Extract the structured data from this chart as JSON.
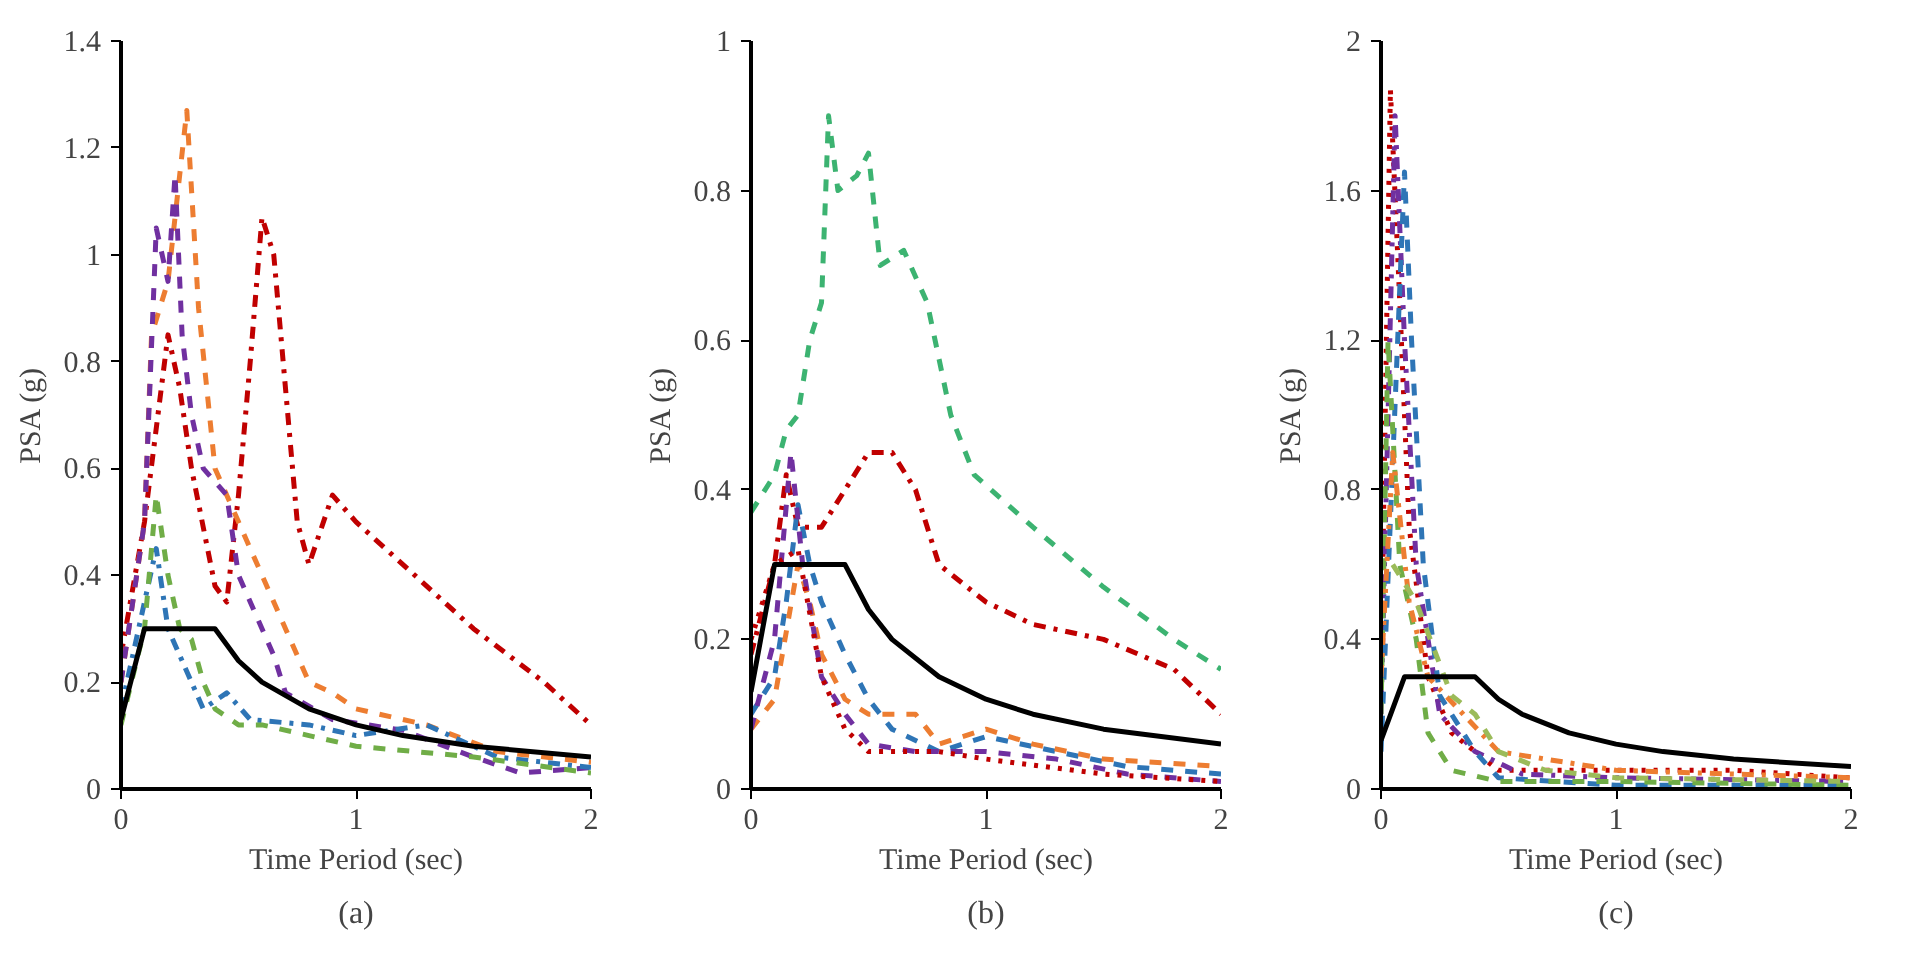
{
  "chart_data": [
    {
      "type": "line",
      "xlabel": "Time Period (sec)",
      "ylabel": "PSA (g)",
      "annotations": [
        "(a)"
      ],
      "xlim": [
        0,
        2
      ],
      "xticks": [
        0,
        1,
        2
      ],
      "ylim": [
        0,
        1.4
      ],
      "yticks": [
        0,
        0.2,
        0.4,
        0.6,
        0.8,
        1,
        1.2,
        1.4
      ],
      "grid": false,
      "series": [
        {
          "color": "#c00000",
          "line_style": "dashdot",
          "x": [
            0,
            0.1,
            0.2,
            0.25,
            0.3,
            0.4,
            0.45,
            0.5,
            0.55,
            0.6,
            0.65,
            0.75,
            0.8,
            0.9,
            1.0,
            1.2,
            1.5,
            1.8,
            2.0
          ],
          "values": [
            0.25,
            0.5,
            0.85,
            0.75,
            0.6,
            0.38,
            0.35,
            0.55,
            0.8,
            1.07,
            1.0,
            0.5,
            0.42,
            0.55,
            0.5,
            0.42,
            0.3,
            0.2,
            0.12
          ]
        },
        {
          "color": "#ed7d31",
          "line_style": "dashed",
          "x": [
            0,
            0.1,
            0.13,
            0.2,
            0.25,
            0.28,
            0.33,
            0.4,
            0.5,
            0.55,
            0.6,
            0.7,
            0.8,
            0.9,
            1.0,
            1.3,
            1.6,
            2.0
          ],
          "values": [
            0.2,
            0.5,
            0.85,
            0.95,
            1.15,
            1.27,
            0.9,
            0.6,
            0.5,
            0.45,
            0.4,
            0.3,
            0.2,
            0.18,
            0.15,
            0.12,
            0.07,
            0.05
          ]
        },
        {
          "color": "#7030a0",
          "line_style": "dashed",
          "x": [
            0,
            0.1,
            0.15,
            0.2,
            0.23,
            0.26,
            0.3,
            0.35,
            0.45,
            0.5,
            0.6,
            0.65,
            0.7,
            0.9,
            1.2,
            1.5,
            1.7,
            2.0
          ],
          "values": [
            0.2,
            0.5,
            1.05,
            0.95,
            1.15,
            0.85,
            0.7,
            0.6,
            0.55,
            0.4,
            0.3,
            0.25,
            0.18,
            0.13,
            0.11,
            0.06,
            0.03,
            0.04
          ]
        },
        {
          "color": "#2e75b6",
          "line_style": "dashdot",
          "x": [
            0,
            0.1,
            0.15,
            0.2,
            0.3,
            0.35,
            0.45,
            0.55,
            0.8,
            1.0,
            1.3,
            1.6,
            2.0
          ],
          "values": [
            0.15,
            0.35,
            0.45,
            0.3,
            0.2,
            0.15,
            0.18,
            0.13,
            0.12,
            0.1,
            0.12,
            0.06,
            0.04
          ]
        },
        {
          "color": "#70ad47",
          "line_style": "dashed",
          "x": [
            0,
            0.1,
            0.15,
            0.2,
            0.25,
            0.3,
            0.35,
            0.4,
            0.5,
            0.6,
            0.8,
            1.0,
            1.5,
            2.0
          ],
          "values": [
            0.12,
            0.3,
            0.55,
            0.4,
            0.3,
            0.28,
            0.2,
            0.15,
            0.12,
            0.12,
            0.1,
            0.08,
            0.06,
            0.03
          ]
        },
        {
          "color": "#000000",
          "line_style": "solid",
          "x": [
            0,
            0.1,
            0.4,
            0.5,
            0.6,
            0.8,
            1.0,
            1.2,
            1.5,
            2.0
          ],
          "values": [
            0.13,
            0.3,
            0.3,
            0.24,
            0.2,
            0.15,
            0.12,
            0.1,
            0.08,
            0.06
          ]
        }
      ]
    },
    {
      "type": "line",
      "xlabel": "Time Period (sec)",
      "ylabel": "PSA (g)",
      "annotations": [
        "(b)"
      ],
      "xlim": [
        0,
        2
      ],
      "xticks": [
        0,
        1,
        2
      ],
      "ylim": [
        0,
        1
      ],
      "yticks": [
        0,
        0.2,
        0.4,
        0.6,
        0.8,
        1
      ],
      "grid": false,
      "series": [
        {
          "color": "#3cb371",
          "line_style": "dashed",
          "x": [
            0,
            0.1,
            0.15,
            0.2,
            0.25,
            0.3,
            0.33,
            0.37,
            0.45,
            0.5,
            0.55,
            0.65,
            0.75,
            0.85,
            0.95,
            1.2,
            1.5,
            1.8,
            2.0
          ],
          "values": [
            0.37,
            0.42,
            0.48,
            0.5,
            0.6,
            0.65,
            0.9,
            0.8,
            0.82,
            0.85,
            0.7,
            0.72,
            0.65,
            0.5,
            0.42,
            0.35,
            0.27,
            0.2,
            0.16
          ]
        },
        {
          "color": "#c00000",
          "line_style": "dashdot",
          "x": [
            0,
            0.1,
            0.15,
            0.2,
            0.3,
            0.4,
            0.5,
            0.6,
            0.7,
            0.8,
            1.0,
            1.2,
            1.5,
            1.8,
            2.0
          ],
          "values": [
            0.18,
            0.3,
            0.42,
            0.35,
            0.35,
            0.4,
            0.45,
            0.45,
            0.4,
            0.3,
            0.25,
            0.22,
            0.2,
            0.16,
            0.1
          ]
        },
        {
          "color": "#2e75b6",
          "line_style": "dashed",
          "x": [
            0,
            0.1,
            0.15,
            0.2,
            0.25,
            0.3,
            0.4,
            0.5,
            0.6,
            0.8,
            1.0,
            1.3,
            1.6,
            2.0
          ],
          "values": [
            0.1,
            0.15,
            0.25,
            0.38,
            0.3,
            0.25,
            0.18,
            0.12,
            0.08,
            0.05,
            0.07,
            0.05,
            0.03,
            0.02
          ]
        },
        {
          "color": "#ed7d31",
          "line_style": "dashed",
          "x": [
            0,
            0.1,
            0.2,
            0.25,
            0.3,
            0.4,
            0.5,
            0.7,
            0.8,
            1.0,
            1.2,
            1.5,
            2.0
          ],
          "values": [
            0.08,
            0.12,
            0.3,
            0.25,
            0.18,
            0.12,
            0.1,
            0.1,
            0.06,
            0.08,
            0.06,
            0.04,
            0.03
          ]
        },
        {
          "color": "#7030a0",
          "line_style": "dashed",
          "x": [
            0,
            0.1,
            0.17,
            0.22,
            0.3,
            0.4,
            0.5,
            0.7,
            1.0,
            1.3,
            1.6,
            2.0
          ],
          "values": [
            0.08,
            0.2,
            0.45,
            0.3,
            0.15,
            0.1,
            0.06,
            0.05,
            0.05,
            0.04,
            0.02,
            0.01
          ]
        },
        {
          "color": "#c00000",
          "line_style": "dotted",
          "x": [
            0,
            0.1,
            0.2,
            0.3,
            0.4,
            0.5,
            0.8,
            1.0,
            1.5,
            2.0
          ],
          "values": [
            0.2,
            0.3,
            0.32,
            0.15,
            0.08,
            0.05,
            0.05,
            0.04,
            0.02,
            0.01
          ]
        },
        {
          "color": "#000000",
          "line_style": "solid",
          "x": [
            0,
            0.1,
            0.4,
            0.5,
            0.6,
            0.8,
            1.0,
            1.2,
            1.5,
            2.0
          ],
          "values": [
            0.13,
            0.3,
            0.3,
            0.24,
            0.2,
            0.15,
            0.12,
            0.1,
            0.08,
            0.06
          ]
        }
      ]
    },
    {
      "type": "line",
      "xlabel": "Time Period (sec)",
      "ylabel": "PSA (g)",
      "annotations": [
        "(c)"
      ],
      "xlim": [
        0,
        2
      ],
      "xticks": [
        0,
        1,
        2
      ],
      "ylim": [
        0,
        2
      ],
      "yticks": [
        0,
        0.4,
        0.8,
        1.2,
        1.6,
        2
      ],
      "grid": false,
      "series": [
        {
          "color": "#c00000",
          "line_style": "dotted",
          "x": [
            0,
            0.04,
            0.08,
            0.12,
            0.2,
            0.3,
            0.5,
            1.0,
            1.5,
            2.0
          ],
          "values": [
            0.3,
            1.87,
            1.3,
            0.7,
            0.3,
            0.15,
            0.05,
            0.05,
            0.05,
            0.03
          ]
        },
        {
          "color": "#7030a0",
          "line_style": "dashdot",
          "x": [
            0,
            0.06,
            0.1,
            0.15,
            0.25,
            0.4,
            0.6,
            1.0,
            2.0
          ],
          "values": [
            0.2,
            1.8,
            1.2,
            0.6,
            0.2,
            0.1,
            0.04,
            0.03,
            0.02
          ]
        },
        {
          "color": "#2e75b6",
          "line_style": "dashed",
          "x": [
            0,
            0.1,
            0.13,
            0.18,
            0.25,
            0.4,
            0.5,
            1.0,
            2.0
          ],
          "values": [
            0.1,
            1.65,
            1.2,
            0.6,
            0.25,
            0.1,
            0.03,
            0.01,
            0.01
          ]
        },
        {
          "color": "#70ad47",
          "line_style": "dashed",
          "x": [
            0,
            0.03,
            0.08,
            0.15,
            0.2,
            0.3,
            0.5,
            1.0,
            2.0
          ],
          "values": [
            0.2,
            1.2,
            0.6,
            0.4,
            0.15,
            0.05,
            0.02,
            0.02,
            0.01
          ]
        },
        {
          "color": "#ed7d31",
          "line_style": "dashdot",
          "x": [
            0,
            0.05,
            0.12,
            0.2,
            0.35,
            0.5,
            1.0,
            2.0
          ],
          "values": [
            0.3,
            0.9,
            0.5,
            0.3,
            0.2,
            0.1,
            0.05,
            0.03
          ]
        },
        {
          "color": "#9bbb59",
          "line_style": "dashed",
          "x": [
            0.05,
            0.15,
            0.3,
            0.4,
            0.5,
            0.7,
            1.0,
            2.0
          ],
          "values": [
            0.6,
            0.5,
            0.25,
            0.2,
            0.1,
            0.05,
            0.03,
            0.02
          ]
        },
        {
          "color": "#000000",
          "line_style": "solid",
          "x": [
            0,
            0.1,
            0.4,
            0.5,
            0.6,
            0.8,
            1.0,
            1.2,
            1.5,
            2.0
          ],
          "values": [
            0.13,
            0.3,
            0.3,
            0.24,
            0.2,
            0.15,
            0.12,
            0.1,
            0.08,
            0.06
          ]
        }
      ]
    }
  ]
}
